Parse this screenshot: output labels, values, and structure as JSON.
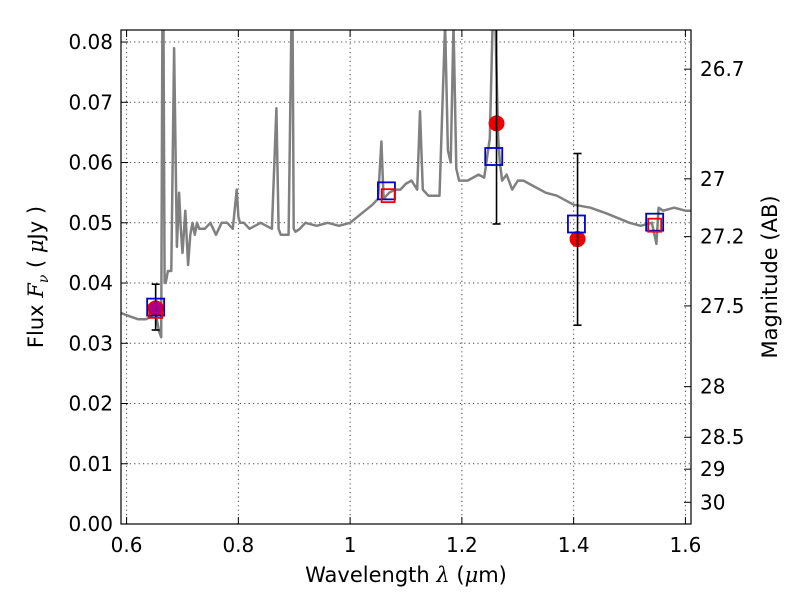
{
  "chart_data": {
    "type": "line",
    "xlabel": "Wavelength  λ (μm)",
    "ylabel": "Flux  Fν  ( μJy )",
    "y2label": "Magnitude (AB)",
    "xlim": [
      0.59,
      1.61
    ],
    "ylim": [
      0.0,
      0.082
    ],
    "grid": true,
    "x_ticks": [
      {
        "value": 0.6,
        "label": "0.6"
      },
      {
        "value": 0.8,
        "label": "0.8"
      },
      {
        "value": 1.0,
        "label": "1"
      },
      {
        "value": 1.2,
        "label": "1.2"
      },
      {
        "value": 1.4,
        "label": "1.4"
      },
      {
        "value": 1.6,
        "label": "1.6"
      }
    ],
    "y_ticks": [
      {
        "value": 0.0,
        "label": "0.00"
      },
      {
        "value": 0.01,
        "label": "0.01"
      },
      {
        "value": 0.02,
        "label": "0.02"
      },
      {
        "value": 0.03,
        "label": "0.03"
      },
      {
        "value": 0.04,
        "label": "0.04"
      },
      {
        "value": 0.05,
        "label": "0.05"
      },
      {
        "value": 0.06,
        "label": "0.06"
      },
      {
        "value": 0.07,
        "label": "0.07"
      },
      {
        "value": 0.08,
        "label": "0.08"
      }
    ],
    "y2_ticks": [
      {
        "flux": 0.0755,
        "label": "26.7"
      },
      {
        "flux": 0.0573,
        "label": "27"
      },
      {
        "flux": 0.0477,
        "label": "27.2"
      },
      {
        "flux": 0.0362,
        "label": "27.5"
      },
      {
        "flux": 0.0228,
        "label": "28"
      },
      {
        "flux": 0.0144,
        "label": "28.5"
      },
      {
        "flux": 0.0091,
        "label": "29"
      },
      {
        "flux": 0.0036,
        "label": "30"
      }
    ],
    "series": [
      {
        "type": "line",
        "color": "#808080",
        "x": [
          0.59,
          0.605,
          0.62,
          0.635,
          0.645,
          0.652,
          0.658,
          0.662,
          0.664,
          0.666,
          0.668,
          0.67,
          0.674,
          0.68,
          0.685,
          0.69,
          0.694,
          0.697,
          0.7,
          0.705,
          0.71,
          0.714,
          0.718,
          0.722,
          0.726,
          0.73,
          0.74,
          0.75,
          0.76,
          0.77,
          0.78,
          0.79,
          0.797,
          0.8,
          0.803,
          0.81,
          0.82,
          0.84,
          0.86,
          0.868,
          0.872,
          0.876,
          0.88,
          0.89,
          0.895,
          0.897,
          0.899,
          0.902,
          0.91,
          0.92,
          0.94,
          0.96,
          0.98,
          1.0,
          1.02,
          1.04,
          1.05,
          1.056,
          1.06,
          1.065,
          1.07,
          1.08,
          1.09,
          1.1,
          1.11,
          1.12,
          1.125,
          1.13,
          1.14,
          1.16,
          1.17,
          1.175,
          1.18,
          1.185,
          1.19,
          1.195,
          1.2,
          1.21,
          1.22,
          1.23,
          1.24,
          1.25,
          1.255,
          1.26,
          1.265,
          1.268,
          1.272,
          1.28,
          1.29,
          1.3,
          1.31,
          1.33,
          1.35,
          1.37,
          1.4,
          1.43,
          1.46,
          1.5,
          1.52,
          1.54,
          1.548,
          1.552,
          1.56,
          1.58,
          1.6,
          1.61
        ],
        "values": [
          0.035,
          0.0345,
          0.034,
          0.034,
          0.0345,
          0.035,
          0.032,
          0.031,
          0.083,
          0.083,
          0.04,
          0.04,
          0.042,
          0.042,
          0.079,
          0.046,
          0.055,
          0.049,
          0.045,
          0.052,
          0.043,
          0.048,
          0.05,
          0.048,
          0.05,
          0.049,
          0.049,
          0.05,
          0.048,
          0.05,
          0.05,
          0.049,
          0.0555,
          0.051,
          0.05,
          0.05,
          0.049,
          0.05,
          0.049,
          0.069,
          0.049,
          0.048,
          0.048,
          0.048,
          0.083,
          0.083,
          0.049,
          0.0485,
          0.049,
          0.05,
          0.0495,
          0.05,
          0.0495,
          0.05,
          0.0515,
          0.053,
          0.054,
          0.0635,
          0.054,
          0.0545,
          0.055,
          0.0555,
          0.0555,
          0.0565,
          0.057,
          0.0555,
          0.0685,
          0.0555,
          0.0545,
          0.0545,
          0.083,
          0.062,
          0.06,
          0.083,
          0.059,
          0.057,
          0.057,
          0.057,
          0.0575,
          0.058,
          0.0575,
          0.064,
          0.083,
          0.083,
          0.064,
          0.06,
          0.057,
          0.058,
          0.0555,
          0.057,
          0.057,
          0.056,
          0.055,
          0.0545,
          0.053,
          0.0525,
          0.0515,
          0.05,
          0.0495,
          0.05,
          0.0465,
          0.0525,
          0.052,
          0.0525,
          0.052,
          0.052
        ]
      },
      {
        "type": "scatter",
        "marker": "circle",
        "color": "#ee0000",
        "x": [
          0.652,
          1.262,
          1.407
        ],
        "values": [
          0.0358,
          0.0665,
          0.0473
        ]
      },
      {
        "type": "errorbar",
        "color": "#000000",
        "x": [
          0.652,
          1.262,
          1.407
        ],
        "low": [
          0.0322,
          0.0498,
          0.033
        ],
        "high": [
          0.0398,
          0.0835,
          0.0615
        ]
      },
      {
        "type": "scatter",
        "marker": "open-square",
        "color": "#0000cc",
        "x": [
          0.652,
          1.065,
          1.257,
          1.405,
          1.545
        ],
        "values": [
          0.036,
          0.0553,
          0.061,
          0.0498,
          0.0501
        ]
      },
      {
        "type": "scatter",
        "marker": "open-square",
        "color": "#ee0000",
        "x": [
          0.652,
          1.068,
          1.545
        ],
        "values": [
          0.0353,
          0.0545,
          0.0496
        ]
      }
    ]
  }
}
